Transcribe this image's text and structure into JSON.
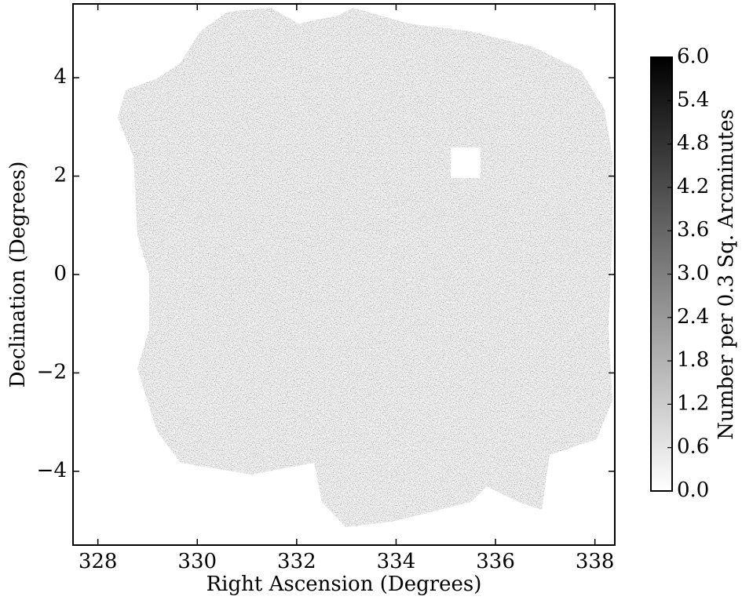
{
  "chart_data": {
    "type": "heatmap",
    "x_label": "Right Ascension (Degrees)",
    "y_label": "Declination (Degrees)",
    "xlim": [
      327.5,
      338.4
    ],
    "ylim": [
      -5.5,
      5.5
    ],
    "xticks": [
      328,
      330,
      332,
      334,
      336,
      338
    ],
    "yticks": [
      {
        "value": -4,
        "label": "−4"
      },
      {
        "value": -2,
        "label": "−2"
      },
      0,
      2,
      4
    ],
    "colorbar": {
      "label": "Number per 0.3 Sq. Arcminutes",
      "lim": [
        0,
        6
      ],
      "colors": [
        "#ffffff",
        "#000000"
      ],
      "ticks": [
        {
          "value": 0,
          "label": "0.0"
        },
        0.6,
        1.2,
        1.8,
        2.4,
        {
          "value": 3,
          "label": "3.0"
        },
        3.6,
        4.2,
        4.8,
        5.4,
        {
          "value": 6,
          "label": "6.0"
        }
      ]
    }
  }
}
